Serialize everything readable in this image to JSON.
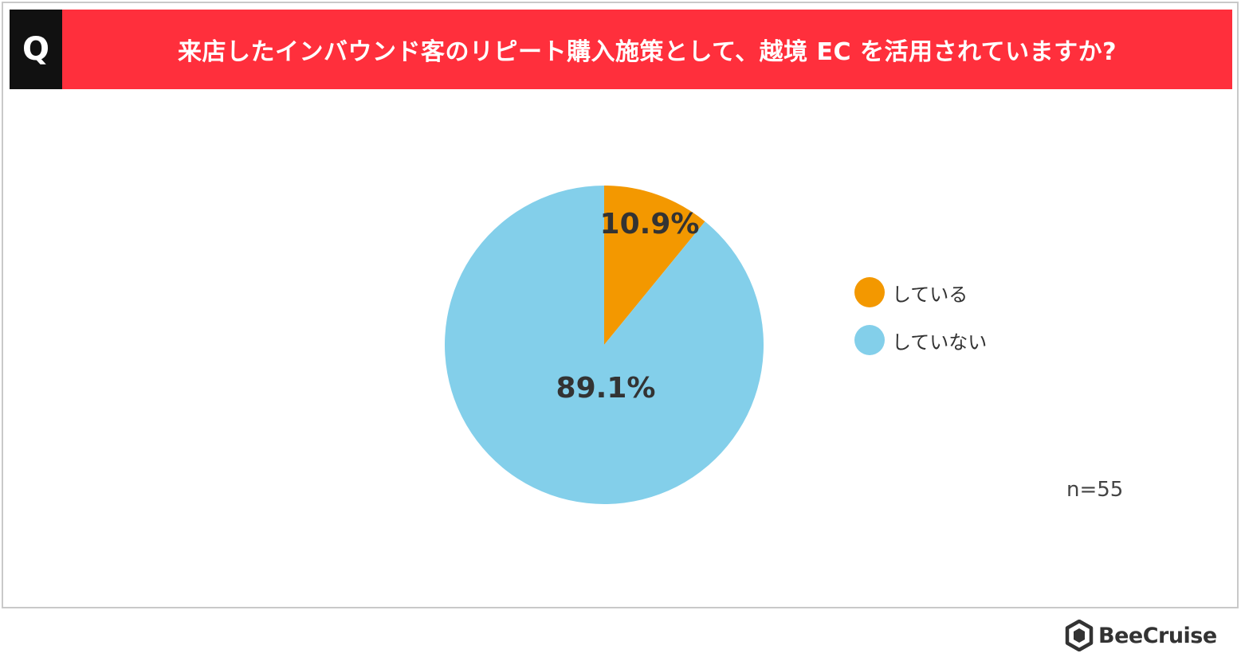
{
  "header": {
    "q_label": "Q",
    "title": "来店したインバウンド客のリピート購入施策として、越境 EC を活用されていますか?"
  },
  "colors": {
    "title_bar": "#ff2f3c",
    "q_box": "#111111",
    "slice_yes": "#f39800",
    "slice_no": "#83cfea",
    "label_text": "#333333"
  },
  "chart_data": {
    "type": "pie",
    "start": "12 o'clock, clockwise",
    "series": [
      {
        "label": "している",
        "value": 10.9,
        "value_label": "10.9%",
        "color": "#f39800"
      },
      {
        "label": "していない",
        "value": 89.1,
        "value_label": "89.1%",
        "color": "#83cfea"
      }
    ],
    "legend_position": "right"
  },
  "legend": {
    "items": [
      {
        "label": "している",
        "color": "#f39800"
      },
      {
        "label": "していない",
        "color": "#83cfea"
      }
    ]
  },
  "sample_size": "n=55",
  "logo": {
    "name": "BeeCruise",
    "icon": "hexagon-logo-icon"
  }
}
